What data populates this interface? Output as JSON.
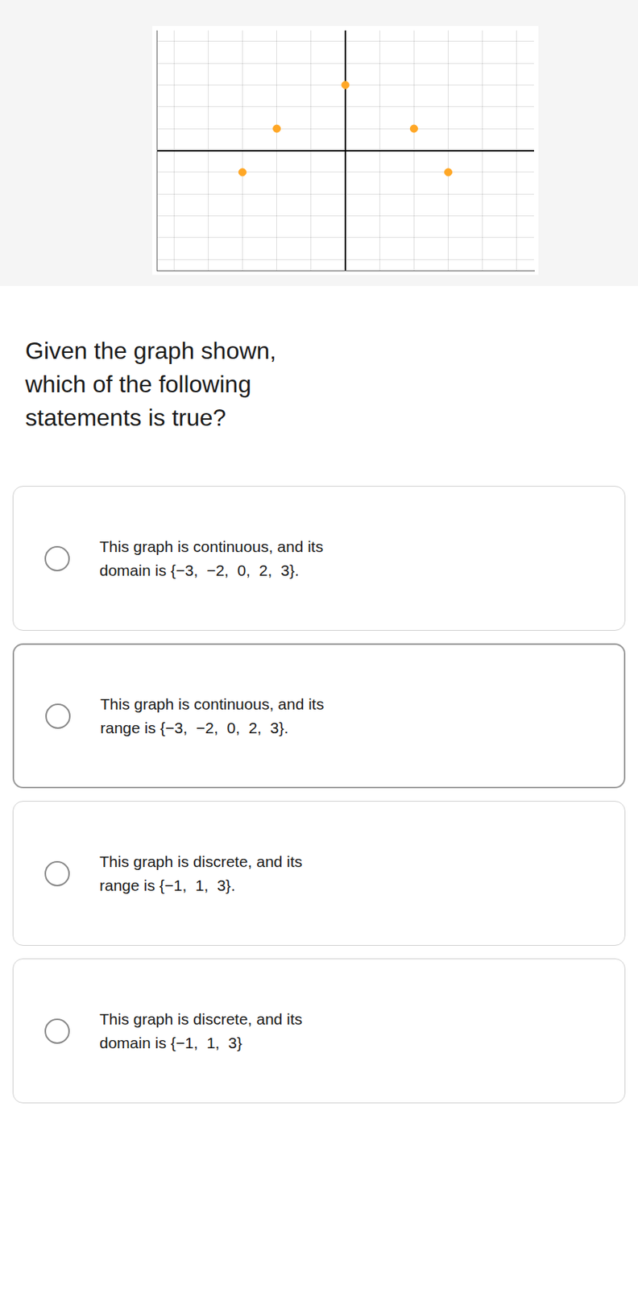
{
  "chart_data": {
    "type": "scatter",
    "title": "Given the graph shown,\nwhich of the following\nstatements is true?",
    "x": [
      0,
      -2,
      2,
      -3,
      3
    ],
    "values": [
      3,
      1,
      1,
      -1,
      -1
    ],
    "color": "#FFA726",
    "xlim": [
      -5.5,
      5.5
    ],
    "ylim": [
      -5.5,
      5.5
    ],
    "xticks": [
      -5,
      -4,
      -3,
      -2,
      -1,
      0,
      1,
      2,
      3,
      4,
      5
    ],
    "yticks": [
      -5,
      -4,
      -3,
      -2,
      -1,
      0,
      1,
      2,
      3,
      4,
      5
    ],
    "grid": true,
    "tick_labels": false,
    "annotations": [
      "This graph is continuous, and its\ndomain is {−3,  −2,  0,  2,  3}.",
      "This graph is continuous, and its\nrange is {−3,  −2,  0,  2,  3}.",
      "This graph is discrete, and its\nrange is {−1,  1,  3}.",
      "This graph is discrete, and its\ndomain is {−1,  1,  3}"
    ]
  }
}
